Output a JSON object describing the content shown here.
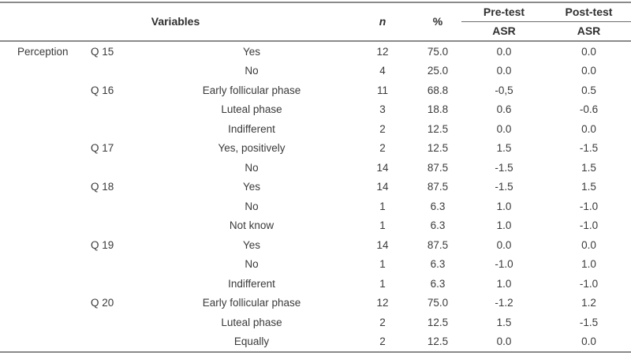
{
  "table": {
    "header": {
      "variables_label": "Variables",
      "n_label": "n",
      "percent_label": "%",
      "pretest_label": "Pre-test",
      "posttest_label": "Post-test",
      "pretest_sub_label": "ASR",
      "posttest_sub_label": "ASR"
    },
    "rows": [
      {
        "group": "Perception",
        "question": "Q 15",
        "response": "Yes",
        "n": "12",
        "percent": "75.0",
        "pre": "0.0",
        "post": "0.0"
      },
      {
        "group": "",
        "question": "",
        "response": "No",
        "n": "4",
        "percent": "25.0",
        "pre": "0.0",
        "post": "0.0"
      },
      {
        "group": "",
        "question": "Q 16",
        "response": "Early follicular phase",
        "n": "11",
        "percent": "68.8",
        "pre": "-0,5",
        "post": "0.5"
      },
      {
        "group": "",
        "question": "",
        "response": "Luteal phase",
        "n": "3",
        "percent": "18.8",
        "pre": "0.6",
        "post": "-0.6"
      },
      {
        "group": "",
        "question": "",
        "response": "Indifferent",
        "n": "2",
        "percent": "12.5",
        "pre": "0.0",
        "post": "0.0"
      },
      {
        "group": "",
        "question": "Q 17",
        "response": "Yes, positively",
        "n": "2",
        "percent": "12.5",
        "pre": "1.5",
        "post": "-1.5"
      },
      {
        "group": "",
        "question": "",
        "response": "No",
        "n": "14",
        "percent": "87.5",
        "pre": "-1.5",
        "post": "1.5"
      },
      {
        "group": "",
        "question": "Q 18",
        "response": "Yes",
        "n": "14",
        "percent": "87.5",
        "pre": "-1.5",
        "post": "1.5"
      },
      {
        "group": "",
        "question": "",
        "response": "No",
        "n": "1",
        "percent": "6.3",
        "pre": "1.0",
        "post": "-1.0"
      },
      {
        "group": "",
        "question": "",
        "response": "Not know",
        "n": "1",
        "percent": "6.3",
        "pre": "1.0",
        "post": "-1.0"
      },
      {
        "group": "",
        "question": "Q 19",
        "response": "Yes",
        "n": "14",
        "percent": "87.5",
        "pre": "0.0",
        "post": "0.0"
      },
      {
        "group": "",
        "question": "",
        "response": "No",
        "n": "1",
        "percent": "6.3",
        "pre": "-1.0",
        "post": "1.0"
      },
      {
        "group": "",
        "question": "",
        "response": "Indifferent",
        "n": "1",
        "percent": "6.3",
        "pre": "1.0",
        "post": "-1.0"
      },
      {
        "group": "",
        "question": "Q 20",
        "response": "Early follicular phase",
        "n": "12",
        "percent": "75.0",
        "pre": "-1.2",
        "post": "1.2"
      },
      {
        "group": "",
        "question": "",
        "response": "Luteal phase",
        "n": "2",
        "percent": "12.5",
        "pre": "1.5",
        "post": "-1.5"
      },
      {
        "group": "",
        "question": "",
        "response": "Equally",
        "n": "2",
        "percent": "12.5",
        "pre": "0.0",
        "post": "0.0"
      }
    ]
  },
  "colors": {
    "rule_gray": "#8a8a8a",
    "spanner_rule_gray": "#6e6e6e",
    "body_text": "#3a3a3a",
    "header_text": "#2f2f2f",
    "background": "#ffffff"
  }
}
